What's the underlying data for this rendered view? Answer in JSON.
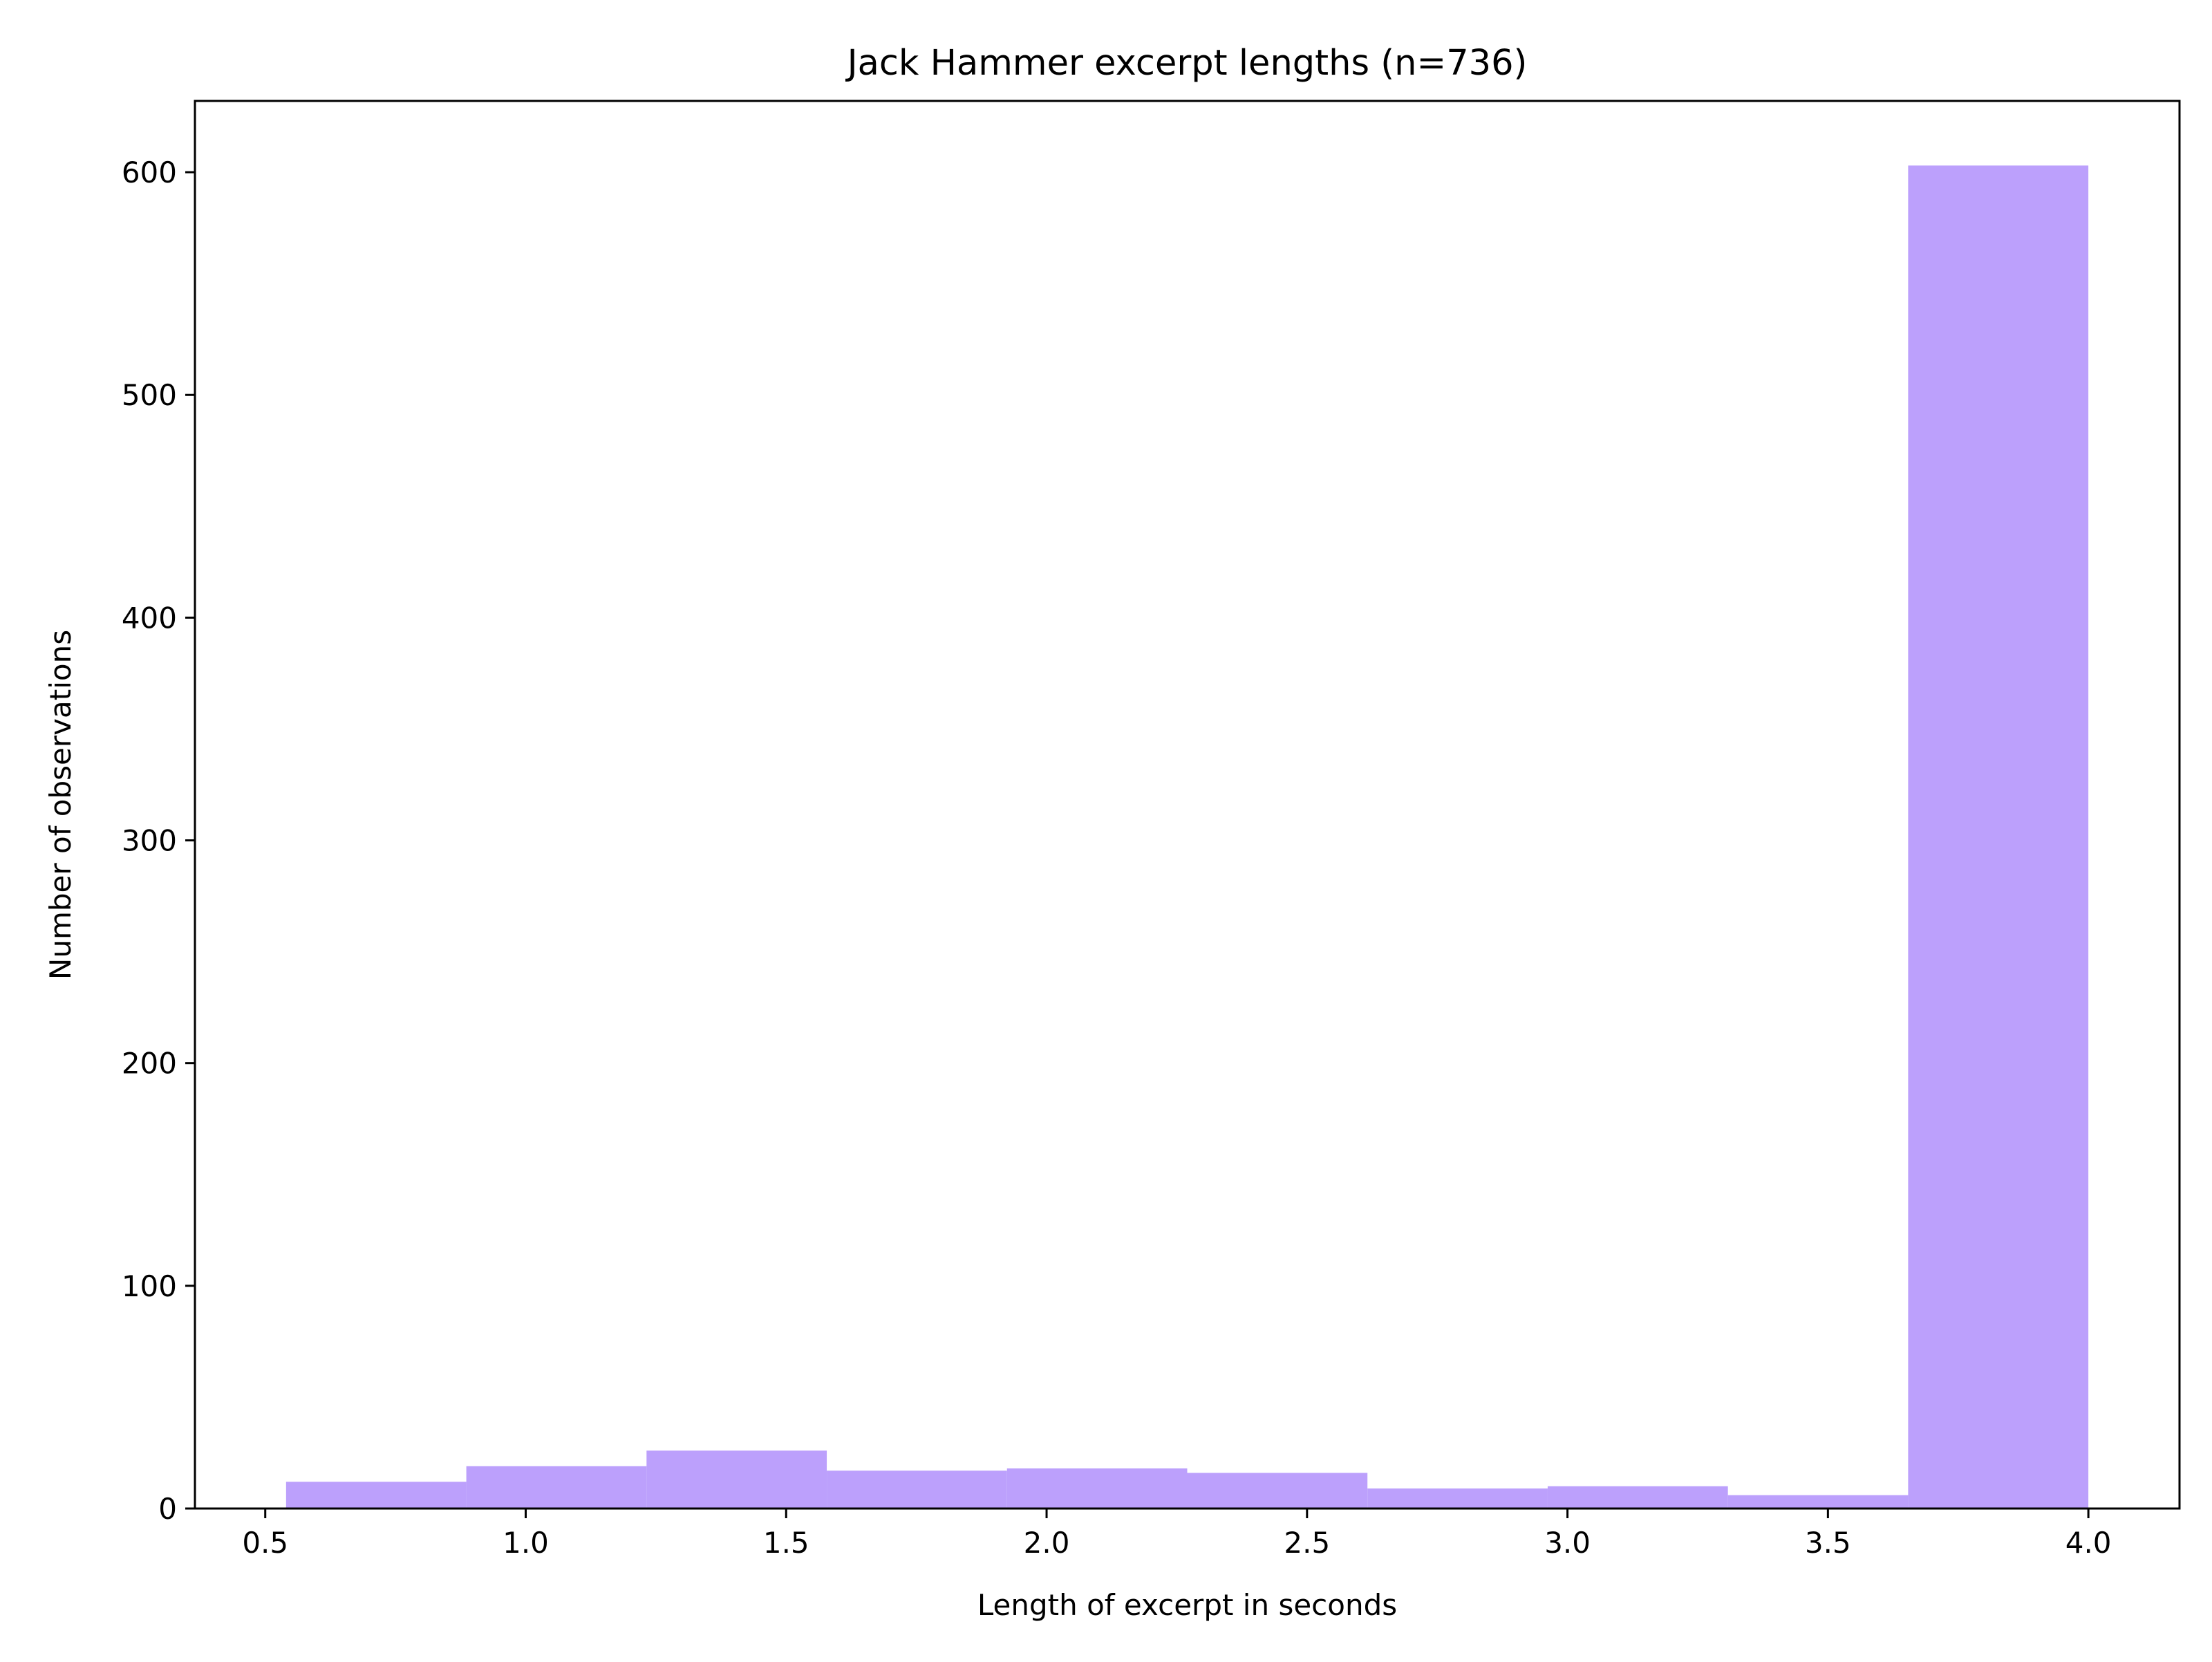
{
  "chart_data": {
    "type": "bar",
    "title": "Jack Hammer excerpt lengths (n=736)",
    "xlabel": "Length of excerpt in seconds",
    "ylabel": "Number of observations",
    "bar_color": "#bca0fc",
    "xlim": [
      0.365,
      4.175
    ],
    "ylim": [
      0,
      632
    ],
    "xticks": [
      {
        "value": 0.5,
        "label": "0.5"
      },
      {
        "value": 1.0,
        "label": "1.0"
      },
      {
        "value": 1.5,
        "label": "1.5"
      },
      {
        "value": 2.0,
        "label": "2.0"
      },
      {
        "value": 2.5,
        "label": "2.5"
      },
      {
        "value": 3.0,
        "label": "3.0"
      },
      {
        "value": 3.5,
        "label": "3.5"
      },
      {
        "value": 4.0,
        "label": "4.0"
      }
    ],
    "yticks": [
      {
        "value": 0,
        "label": "0"
      },
      {
        "value": 100,
        "label": "100"
      },
      {
        "value": 200,
        "label": "200"
      },
      {
        "value": 300,
        "label": "300"
      },
      {
        "value": 400,
        "label": "400"
      },
      {
        "value": 500,
        "label": "500"
      },
      {
        "value": 600,
        "label": "600"
      }
    ],
    "bins": [
      {
        "x0": 0.54,
        "x1": 0.886,
        "count": 12
      },
      {
        "x0": 0.886,
        "x1": 1.232,
        "count": 19
      },
      {
        "x0": 1.232,
        "x1": 1.578,
        "count": 26
      },
      {
        "x0": 1.578,
        "x1": 1.924,
        "count": 17
      },
      {
        "x0": 1.924,
        "x1": 2.27,
        "count": 18
      },
      {
        "x0": 2.27,
        "x1": 2.616,
        "count": 16
      },
      {
        "x0": 2.616,
        "x1": 2.962,
        "count": 9
      },
      {
        "x0": 2.962,
        "x1": 3.308,
        "count": 10
      },
      {
        "x0": 3.308,
        "x1": 3.654,
        "count": 6
      },
      {
        "x0": 3.654,
        "x1": 4.0,
        "count": 603
      }
    ],
    "grid": false,
    "legend": false
  }
}
